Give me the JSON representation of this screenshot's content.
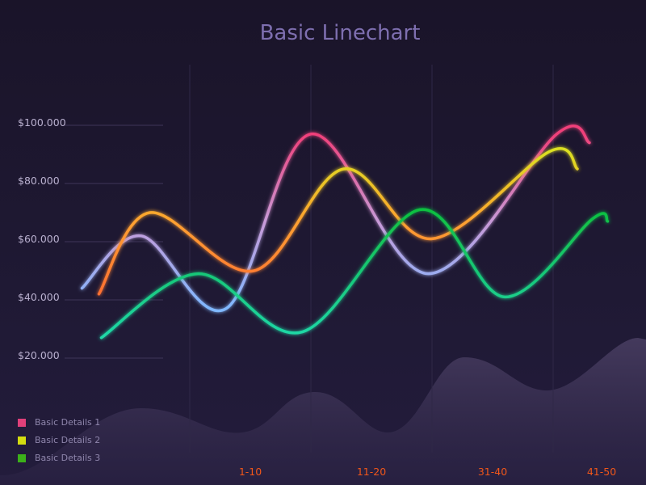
{
  "chart_data": {
    "type": "line",
    "title": "Basic Linechart",
    "xlabel": "",
    "ylabel": "",
    "categories": [
      "1-10",
      "11-20",
      "31-40",
      "41-50"
    ],
    "y_ticks": [
      "$100.000",
      "$80.000",
      "$60.000",
      "$40.000",
      "$20.000"
    ],
    "ylim": [
      0,
      100000
    ],
    "grid": true,
    "legend_placement": "bottom-left",
    "series": [
      {
        "name": "Basic Details 1",
        "legend_color": "#e0407a",
        "gradient": [
          "#f0407a",
          "#c89ad8",
          "#80b8ff"
        ],
        "x": [
          -0.39,
          0.1,
          0.8,
          1.5,
          2.47,
          3.53,
          3.8
        ],
        "y": [
          44000,
          62000,
          37000,
          97000,
          49000,
          97000,
          94000
        ]
      },
      {
        "name": "Basic Details 2",
        "legend_color": "#d4dc10",
        "gradient": [
          "#dce020",
          "#ffa030",
          "#ff7030"
        ],
        "x": [
          -0.25,
          0.17,
          1.03,
          1.77,
          2.5,
          3.47,
          3.7
        ],
        "y": [
          42000,
          70000,
          50000,
          85000,
          61000,
          91000,
          85000
        ]
      },
      {
        "name": "Basic Details 3",
        "legend_color": "#3cb01a",
        "gradient": [
          "#10c040",
          "#18c878",
          "#20d8a8"
        ],
        "x": [
          -0.23,
          0.57,
          1.43,
          2.4,
          3.1,
          3.83,
          3.95
        ],
        "y": [
          27000,
          49000,
          29000,
          71000,
          41000,
          68000,
          67000
        ]
      }
    ]
  }
}
